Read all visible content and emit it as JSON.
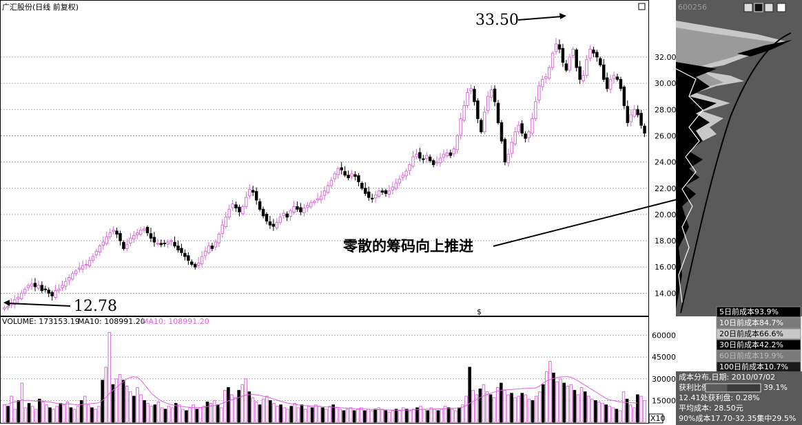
{
  "header": {
    "title": "广汇股份(日线 前复权)",
    "code": "600256"
  },
  "annotations": {
    "high_label": "33.50",
    "low_label": "12.78",
    "chip_note": "零散的筹码向上推进",
    "dollar_mark": "$"
  },
  "volume_header": {
    "volume_text": "VOLUME: 173153.19",
    "ma10_text": "MA10: 108991.20",
    "ma10_pink_text": "MA10: 108991.20"
  },
  "cost_legend": [
    {
      "label": "5日前成本93.9%",
      "color": "#000000",
      "text_color": "#ffffff"
    },
    {
      "label": "10日前成本84.7%",
      "color": "#7a7a7a",
      "text_color": "#ffffff"
    },
    {
      "label": "20日前成本66.6%",
      "color": "#c8c8c8",
      "text_color": "#000000"
    },
    {
      "label": "30日前成本42.2%",
      "color": "#000000",
      "text_color": "#ffffff"
    },
    {
      "label": "60日前成本19.9%",
      "color": "#7a7a7a",
      "text_color": "#bbbbbb"
    },
    {
      "label": "100日前成本10.7%",
      "color": "#1a1a1a",
      "text_color": "#ffffff"
    }
  ],
  "cost_info": {
    "title": "成本分布,日期: 2010/07/02",
    "profit_label": "获利比例",
    "profit_value": "39.1%",
    "profit_ratio": 0.391,
    "line3": "12.41处获利盘: 0.28%",
    "line4": "平均成本: 28.50元",
    "line5": "90%成本17.70-32.35集中29.5%"
  },
  "x10_label": "X10",
  "colors": {
    "up": "#d86cd8",
    "down": "#000000",
    "ma": "#e060e0",
    "grid": "#9a9a9a",
    "panel_bg": "#ffffff",
    "right_bg": "#5a5a5a"
  },
  "chart_data": [
    {
      "type": "candlestick",
      "title": "广汇股份(日线 前复权)",
      "ylim": [
        12.5,
        35.3
      ],
      "yticks": [
        14,
        16,
        18,
        20,
        22,
        24,
        26,
        28,
        30,
        32
      ],
      "ytick_labels": [
        "14.00",
        "16.00",
        "18.00",
        "20.00",
        "22.00",
        "24.00",
        "26.00",
        "28.00",
        "30.00",
        "32.00"
      ],
      "grid": true,
      "points": [
        12.9,
        13.0,
        13.2,
        13.5,
        13.7,
        14.0,
        14.3,
        14.6,
        14.7,
        14.5,
        14.6,
        14.2,
        14.3,
        14.0,
        13.8,
        14.2,
        14.3,
        14.6,
        14.9,
        15.2,
        15.5,
        15.7,
        15.9,
        16.1,
        16.2,
        16.5,
        16.8,
        17.2,
        17.6,
        17.9,
        18.3,
        18.6,
        18.8,
        18.5,
        18.0,
        17.4,
        17.7,
        18.2,
        18.4,
        18.6,
        18.8,
        18.9,
        18.6,
        18.2,
        17.9,
        17.8,
        17.7,
        17.8,
        17.9,
        18.0,
        17.6,
        17.3,
        17.1,
        16.8,
        16.5,
        16.2,
        16.0,
        16.3,
        16.8,
        17.2,
        17.6,
        17.4,
        17.9,
        18.5,
        19.2,
        19.8,
        20.4,
        20.8,
        20.5,
        20.2,
        20.6,
        21.3,
        21.9,
        21.7,
        21.1,
        20.4,
        19.9,
        19.5,
        19.2,
        19.1,
        19.4,
        19.8,
        20.1,
        19.8,
        20.3,
        20.6,
        20.4,
        20.2,
        20.5,
        20.7,
        20.9,
        21.0,
        21.2,
        21.4,
        21.8,
        22.2,
        22.6,
        23.1,
        23.5,
        23.4,
        23.0,
        22.8,
        23.1,
        22.9,
        22.5,
        22.0,
        21.6,
        21.3,
        21.2,
        21.5,
        21.8,
        21.7,
        21.6,
        21.8,
        22.1,
        22.4,
        22.7,
        23.0,
        23.3,
        23.8,
        24.4,
        24.6,
        24.3,
        24.2,
        24.5,
        24.1,
        23.8,
        24.0,
        24.3,
        24.6,
        24.7,
        24.5,
        25.0,
        26.0,
        27.3,
        28.3,
        29.3,
        29.6,
        28.6,
        27.3,
        26.3,
        27.8,
        29.0,
        29.5,
        28.6,
        27.0,
        25.6,
        24.0,
        24.6,
        25.5,
        26.3,
        26.8,
        26.2,
        25.8,
        26.3,
        27.3,
        28.6,
        29.8,
        30.3,
        30.5,
        31.2,
        32.3,
        33.0,
        32.6,
        31.6,
        31.0,
        32.0,
        32.6,
        31.2,
        30.3,
        30.6,
        31.8,
        32.6,
        32.3,
        32.0,
        31.4,
        30.3,
        29.6,
        30.3,
        30.6,
        30.3,
        29.6,
        28.3,
        27.0,
        27.6,
        28.0,
        27.6,
        26.8,
        26.2
      ]
    },
    {
      "type": "bar",
      "ylim": [
        0,
        66000
      ],
      "yticks": [
        15000,
        30000,
        45000,
        60000
      ],
      "ytick_labels": [
        "15000",
        "30000",
        "45000",
        "60000"
      ],
      "grid": true,
      "values": [
        12000,
        11000,
        18000,
        9000,
        15000,
        27000,
        10000,
        13000,
        11000,
        9000,
        16000,
        14000,
        12000,
        10000,
        9000,
        11000,
        13000,
        12000,
        14000,
        10000,
        9000,
        11000,
        15000,
        18000,
        12000,
        10000,
        9000,
        11000,
        29000,
        38000,
        62000,
        26000,
        30000,
        33000,
        29000,
        25000,
        21000,
        18000,
        24000,
        19000,
        15000,
        13000,
        11000,
        12000,
        14000,
        10000,
        9000,
        11000,
        10000,
        13000,
        12000,
        9000,
        8000,
        10000,
        12000,
        9000,
        10000,
        11000,
        14000,
        13000,
        15000,
        12000,
        10000,
        22000,
        24000,
        19000,
        17000,
        22000,
        26000,
        30000,
        21000,
        17000,
        14000,
        12000,
        16000,
        18000,
        15000,
        13000,
        11000,
        12000,
        10000,
        9000,
        11000,
        13000,
        10000,
        12000,
        9000,
        11000,
        10000,
        12000,
        11000,
        10000,
        9000,
        11000,
        12000,
        10000,
        9000,
        8000,
        9000,
        10000,
        8000,
        9000,
        10000,
        8000,
        9000,
        8000,
        9000,
        10000,
        9000,
        8000,
        7000,
        8000,
        9000,
        8000,
        10000,
        9000,
        8000,
        9000,
        10000,
        11000,
        9000,
        8000,
        10000,
        9000,
        8000,
        9000,
        11000,
        10000,
        9000,
        8000,
        10000,
        12000,
        18000,
        38000,
        22000,
        19000,
        23000,
        26000,
        21000,
        19000,
        17000,
        24000,
        27000,
        22000,
        19000,
        20000,
        17000,
        18000,
        20000,
        19000,
        16000,
        15000,
        18000,
        21000,
        26000,
        35000,
        42000,
        34000,
        28000,
        30000,
        27000,
        25000,
        26000,
        22000,
        19000,
        24000,
        21000,
        18000,
        16000,
        15000,
        14000,
        13000,
        12000,
        11000,
        10000,
        9000,
        8000,
        21000,
        16000,
        12000,
        10000,
        19000,
        18000,
        15000
      ],
      "ma": [
        12000,
        12500,
        13500,
        14000,
        14500,
        15500,
        15000,
        15200,
        14800,
        14500,
        14800,
        14500,
        14200,
        14000,
        13500,
        13000,
        12800,
        12500,
        12800,
        12500,
        12200,
        12000,
        12200,
        12500,
        12800,
        13000,
        13200,
        13500,
        15000,
        17000,
        20000,
        22000,
        24000,
        26000,
        28000,
        30000,
        31000,
        31500,
        31000,
        29000,
        26000,
        23000,
        20000,
        18000,
        16000,
        14500,
        13500,
        12500,
        12000,
        11500,
        11000,
        10800,
        10500,
        10300,
        10200,
        10100,
        10200,
        10400,
        10800,
        11200,
        11500,
        12000,
        12800,
        13800,
        14800,
        15500,
        16200,
        17000,
        18000,
        18800,
        19000,
        19200,
        19000,
        18500,
        18000,
        17500,
        16800,
        16000,
        15200,
        14500,
        13800,
        13200,
        12800,
        12400,
        12000,
        11800,
        11500,
        11300,
        11100,
        11000,
        10900,
        10800,
        10600,
        10500,
        10400,
        10300,
        10100,
        9900,
        9700,
        9600,
        9400,
        9300,
        9200,
        9100,
        9000,
        8900,
        8800,
        8800,
        8700,
        8600,
        8500,
        8400,
        8400,
        8300,
        8400,
        8400,
        8500,
        8600,
        8700,
        8800,
        8900,
        9000,
        9000,
        9100,
        9200,
        9300,
        9400,
        9500,
        9600,
        9700,
        9900,
        10500,
        11500,
        13000,
        14500,
        15800,
        17000,
        18200,
        19200,
        20000,
        20800,
        21500,
        22000,
        22300,
        22500,
        22700,
        22900,
        23000,
        23200,
        23300,
        23400,
        23500,
        23800,
        25000,
        27000,
        28500,
        29500,
        30200,
        30800,
        31200,
        31500,
        31500,
        31000,
        30000,
        28500,
        27000,
        25500,
        24000,
        22500,
        21000,
        19500,
        18000,
        16500,
        15500,
        15000,
        14500,
        14000,
        13800,
        13600,
        13500,
        13400,
        13300
      ]
    }
  ]
}
